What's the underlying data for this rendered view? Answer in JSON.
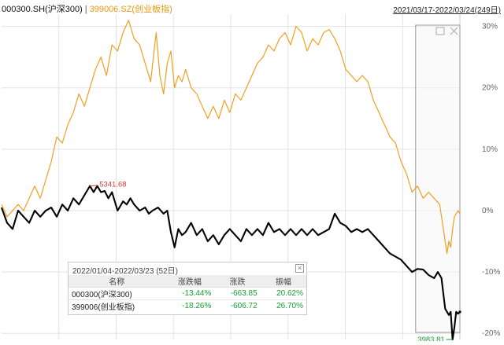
{
  "header": {
    "series1_label": "000300.SH(沪深300)",
    "separator": "|",
    "series2_label": "399006.SZ(创业板指)",
    "date_range": "2021/03/17-2022/03/24(249日)"
  },
  "colors": {
    "series1": "#000000",
    "series2": "#f0a020",
    "grid": "#e3e3e3",
    "high_label": "#d23c3c",
    "low_label": "#16a12d"
  },
  "stats_panel": {
    "title": "2022/01/04-2022/03/23 (52日)",
    "close_icon": "close-icon",
    "columns": [
      "名称",
      "涨跌幅",
      "涨跌",
      "振幅"
    ],
    "rows": [
      {
        "name": "000300(沪深300)",
        "pct": "-13.44%",
        "chg": "-663.85",
        "amp": "20.62%"
      },
      {
        "name": "399006(创业板指)",
        "pct": "-18.26%",
        "chg": "-606.72",
        "amp": "26.70%"
      }
    ]
  },
  "chart_data": {
    "type": "line",
    "ylim": [
      -21,
      32
    ],
    "y_ticks": [
      30,
      20,
      10,
      0,
      -10,
      -20
    ],
    "y_tick_labels": [
      "30%",
      "20%",
      "10%",
      "0%",
      "-10%",
      "-20%"
    ],
    "x_points": 249,
    "grid": true,
    "highlight_range": {
      "start_index": 201,
      "end_index": 249
    },
    "annotations": {
      "high": "5341.68",
      "low": "3983.81"
    },
    "series": [
      {
        "name": "000300.SH(沪深300)",
        "values": [
          [
            0,
            0.5
          ],
          [
            3,
            -2
          ],
          [
            6,
            -3
          ],
          [
            9,
            0
          ],
          [
            12,
            -1
          ],
          [
            15,
            -2
          ],
          [
            18,
            0
          ],
          [
            21,
            -1
          ],
          [
            24,
            0
          ],
          [
            27,
            0.5
          ],
          [
            30,
            -1
          ],
          [
            33,
            1
          ],
          [
            36,
            0
          ],
          [
            39,
            2
          ],
          [
            42,
            1
          ],
          [
            45,
            2.5
          ],
          [
            48,
            4
          ],
          [
            50,
            3
          ],
          [
            52,
            4
          ],
          [
            54,
            3
          ],
          [
            56,
            3.2
          ],
          [
            58,
            2
          ],
          [
            60,
            3
          ],
          [
            63,
            0
          ],
          [
            66,
            1.5
          ],
          [
            68,
            1
          ],
          [
            70,
            2
          ],
          [
            72,
            1
          ],
          [
            75,
            0
          ],
          [
            78,
            0.5
          ],
          [
            80,
            -0.5
          ],
          [
            82,
            0
          ],
          [
            85,
            0.5
          ],
          [
            88,
            -0.5
          ],
          [
            90,
            0
          ],
          [
            92,
            -3.5
          ],
          [
            94,
            -6
          ],
          [
            96,
            -3
          ],
          [
            98,
            -4
          ],
          [
            100,
            -3.5
          ],
          [
            103,
            -2
          ],
          [
            106,
            -4
          ],
          [
            109,
            -3
          ],
          [
            112,
            -5
          ],
          [
            115,
            -4
          ],
          [
            118,
            -5.5
          ],
          [
            121,
            -4
          ],
          [
            124,
            -3
          ],
          [
            127,
            -4
          ],
          [
            130,
            -5
          ],
          [
            133,
            -3
          ],
          [
            136,
            -4
          ],
          [
            139,
            -3
          ],
          [
            142,
            -4
          ],
          [
            145,
            -2
          ],
          [
            148,
            -3.5
          ],
          [
            151,
            -3
          ],
          [
            154,
            -4
          ],
          [
            157,
            -3
          ],
          [
            160,
            -4
          ],
          [
            163,
            -3
          ],
          [
            166,
            -4
          ],
          [
            169,
            -3
          ],
          [
            172,
            -4
          ],
          [
            175,
            -3.5
          ],
          [
            178,
            -3
          ],
          [
            181,
            -0.5
          ],
          [
            184,
            -2
          ],
          [
            187,
            -2.5
          ],
          [
            190,
            -3.5
          ],
          [
            193,
            -3
          ],
          [
            196,
            -3.5
          ],
          [
            199,
            -3
          ],
          [
            202,
            -4
          ],
          [
            205,
            -5
          ],
          [
            208,
            -6
          ],
          [
            211,
            -7
          ],
          [
            214,
            -7.5
          ],
          [
            217,
            -8
          ],
          [
            220,
            -9
          ],
          [
            223,
            -10
          ],
          [
            226,
            -9.5
          ],
          [
            229,
            -9.6
          ],
          [
            232,
            -10.5
          ],
          [
            235,
            -11
          ],
          [
            237,
            -10
          ],
          [
            239,
            -11
          ],
          [
            241,
            -16
          ],
          [
            243,
            -17
          ],
          [
            244,
            -16.5
          ],
          [
            245,
            -21
          ],
          [
            246,
            -19
          ],
          [
            247,
            -16.5
          ],
          [
            248,
            -16.8
          ],
          [
            249,
            -16.5
          ]
        ]
      },
      {
        "name": "399006.SZ(创业板指)",
        "values": [
          [
            0,
            1
          ],
          [
            3,
            -1
          ],
          [
            6,
            0
          ],
          [
            9,
            1
          ],
          [
            12,
            0
          ],
          [
            15,
            2
          ],
          [
            18,
            4
          ],
          [
            21,
            2
          ],
          [
            24,
            5
          ],
          [
            27,
            8
          ],
          [
            30,
            12
          ],
          [
            33,
            11
          ],
          [
            36,
            14
          ],
          [
            39,
            16
          ],
          [
            42,
            19
          ],
          [
            45,
            17
          ],
          [
            48,
            20
          ],
          [
            51,
            23
          ],
          [
            54,
            25
          ],
          [
            57,
            22
          ],
          [
            60,
            27
          ],
          [
            63,
            26
          ],
          [
            66,
            29
          ],
          [
            69,
            31
          ],
          [
            72,
            28
          ],
          [
            75,
            27
          ],
          [
            78,
            24
          ],
          [
            81,
            21
          ],
          [
            84,
            29
          ],
          [
            86,
            22
          ],
          [
            88,
            19
          ],
          [
            90,
            24
          ],
          [
            92,
            26
          ],
          [
            94,
            20
          ],
          [
            96,
            22
          ],
          [
            98,
            21
          ],
          [
            100,
            23
          ],
          [
            103,
            20
          ],
          [
            106,
            19
          ],
          [
            109,
            17
          ],
          [
            112,
            15
          ],
          [
            115,
            17
          ],
          [
            118,
            15
          ],
          [
            121,
            18
          ],
          [
            124,
            16
          ],
          [
            127,
            19
          ],
          [
            130,
            18
          ],
          [
            133,
            20
          ],
          [
            136,
            22
          ],
          [
            139,
            24
          ],
          [
            142,
            25
          ],
          [
            145,
            27
          ],
          [
            148,
            26
          ],
          [
            151,
            28
          ],
          [
            154,
            29
          ],
          [
            157,
            27
          ],
          [
            160,
            30
          ],
          [
            163,
            29
          ],
          [
            166,
            26
          ],
          [
            169,
            28
          ],
          [
            172,
            27
          ],
          [
            175,
            29
          ],
          [
            178,
            29.5
          ],
          [
            181,
            28
          ],
          [
            184,
            26
          ],
          [
            187,
            23
          ],
          [
            190,
            22
          ],
          [
            193,
            21
          ],
          [
            196,
            22
          ],
          [
            199,
            21
          ],
          [
            202,
            18
          ],
          [
            205,
            16
          ],
          [
            208,
            14
          ],
          [
            211,
            12
          ],
          [
            214,
            11
          ],
          [
            217,
            8
          ],
          [
            220,
            6
          ],
          [
            223,
            3
          ],
          [
            226,
            4
          ],
          [
            229,
            2
          ],
          [
            232,
            3
          ],
          [
            235,
            2
          ],
          [
            238,
            1
          ],
          [
            240,
            -3
          ],
          [
            242,
            -7
          ],
          [
            243,
            -5
          ],
          [
            244,
            -6
          ],
          [
            245,
            -3
          ],
          [
            246,
            -1
          ],
          [
            247,
            -0.5
          ],
          [
            248,
            0
          ],
          [
            249,
            -0.5
          ]
        ]
      }
    ]
  }
}
